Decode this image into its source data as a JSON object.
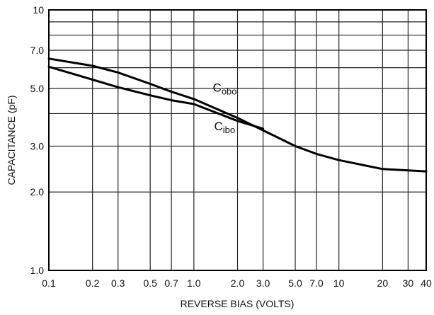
{
  "chart_data": {
    "type": "line",
    "title": "",
    "xlabel": "REVERSE BIAS (VOLTS)",
    "ylabel": "CAPACITANCE (pF)",
    "x_scale": "log",
    "y_scale": "log",
    "xlim": [
      0.1,
      40
    ],
    "ylim": [
      1.0,
      10
    ],
    "grid": true,
    "x_ticks": [
      {
        "value": 0.1,
        "label": "0.1"
      },
      {
        "value": 0.2,
        "label": "0.2"
      },
      {
        "value": 0.3,
        "label": "0.3"
      },
      {
        "value": 0.5,
        "label": "0.5"
      },
      {
        "value": 0.7,
        "label": "0.7"
      },
      {
        "value": 1.0,
        "label": "1.0"
      },
      {
        "value": 2.0,
        "label": "2.0"
      },
      {
        "value": 3.0,
        "label": "3.0"
      },
      {
        "value": 5.0,
        "label": "5.0"
      },
      {
        "value": 7.0,
        "label": "7.0"
      },
      {
        "value": 10,
        "label": "10"
      },
      {
        "value": 20,
        "label": "20"
      },
      {
        "value": 30,
        "label": "30"
      },
      {
        "value": 40,
        "label": "40"
      }
    ],
    "y_ticks": [
      {
        "value": 1.0,
        "label": "1.0"
      },
      {
        "value": 2.0,
        "label": "2.0"
      },
      {
        "value": 3.0,
        "label": "3.0"
      },
      {
        "value": 5.0,
        "label": "5.0"
      },
      {
        "value": 7.0,
        "label": "7.0"
      },
      {
        "value": 10,
        "label": "10"
      }
    ],
    "y_minor_gridlines": [
      4,
      6,
      8,
      9
    ],
    "series": [
      {
        "name_main": "C",
        "name_sub": "obo",
        "x": [
          0.1,
          0.2,
          0.3,
          0.5,
          0.7,
          1.0,
          2.0,
          3.0,
          5.0,
          7.0,
          10,
          20,
          40
        ],
        "y": [
          6.5,
          6.1,
          5.75,
          5.2,
          4.85,
          4.55,
          3.85,
          3.45,
          3.0,
          2.8,
          2.65,
          2.45,
          2.4
        ]
      },
      {
        "name_main": "C",
        "name_sub": "ibo",
        "x": [
          0.1,
          0.2,
          0.3,
          0.5,
          0.7,
          1.0,
          2.0,
          3.0
        ],
        "y": [
          6.05,
          5.4,
          5.05,
          4.7,
          4.5,
          4.35,
          3.75,
          3.5
        ]
      }
    ]
  }
}
